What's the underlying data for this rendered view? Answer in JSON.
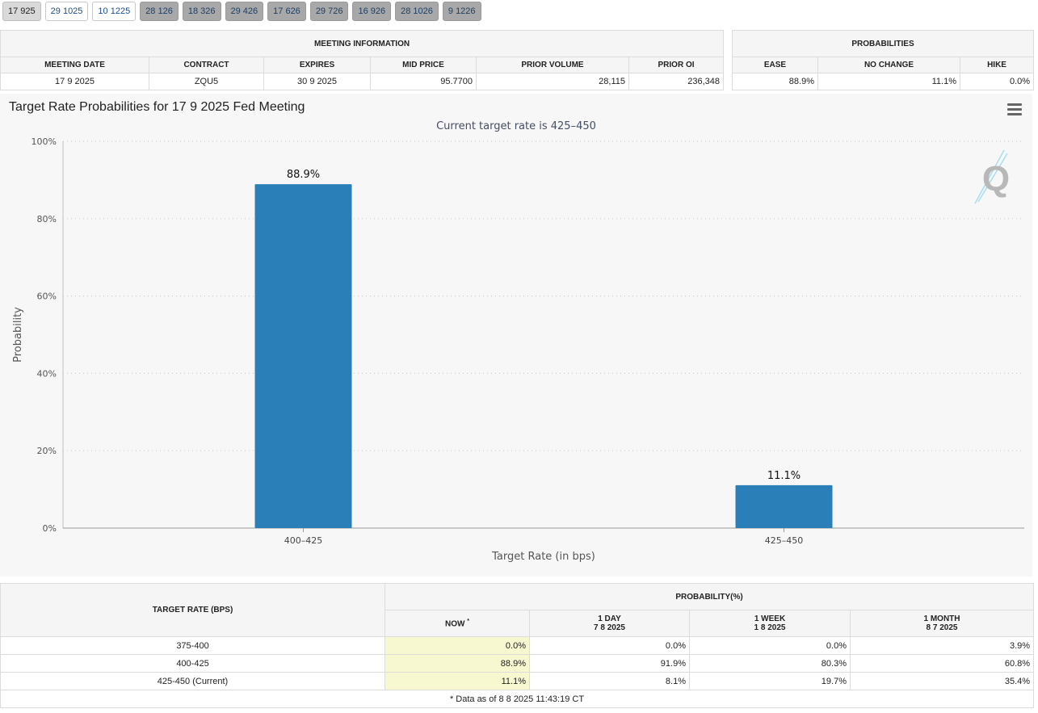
{
  "tabs": [
    {
      "label": "17 925",
      "style": "active"
    },
    {
      "label": "29 1025",
      "style": "white"
    },
    {
      "label": "10 1225",
      "style": "white"
    },
    {
      "label": "28 126",
      "style": "gray"
    },
    {
      "label": "18 326",
      "style": "gray"
    },
    {
      "label": "29 426",
      "style": "gray"
    },
    {
      "label": "17 626",
      "style": "gray"
    },
    {
      "label": "29 726",
      "style": "gray"
    },
    {
      "label": "16 926",
      "style": "gray"
    },
    {
      "label": "28 1026",
      "style": "gray"
    },
    {
      "label": "9 1226",
      "style": "gray"
    }
  ],
  "meeting_info": {
    "title": "MEETING INFORMATION",
    "headers": [
      "MEETING DATE",
      "CONTRACT",
      "EXPIRES",
      "MID PRICE",
      "PRIOR VOLUME",
      "PRIOR OI"
    ],
    "values": [
      "17 9 2025",
      "ZQU5",
      "30 9 2025",
      "95.7700",
      "28,115",
      "236,348"
    ]
  },
  "probabilities": {
    "title": "PROBABILITIES",
    "headers": [
      "EASE",
      "NO CHANGE",
      "HIKE"
    ],
    "values": [
      "88.9%",
      "11.1%",
      "0.0%"
    ]
  },
  "chart": {
    "title": "Target Rate Probabilities for 17 9 2025 Fed Meeting",
    "subtitle": "Current target rate is 425–450",
    "bar_color": "#2b7fb8"
  },
  "chart_data": {
    "type": "bar",
    "categories": [
      "400–425",
      "425–450"
    ],
    "values": [
      88.9,
      11.1
    ],
    "data_labels": [
      "88.9%",
      "11.1%"
    ],
    "xlabel": "Target Rate (in bps)",
    "ylabel": "Probability",
    "ylim": [
      0,
      100
    ],
    "yticks": [
      "0%",
      "20%",
      "40%",
      "60%",
      "80%",
      "100%"
    ],
    "grid": true
  },
  "rates_table": {
    "target_header": "TARGET RATE (BPS)",
    "prob_header": "PROBABILITY(%)",
    "cols": [
      {
        "label": "NOW",
        "sub": ""
      },
      {
        "label": "1 DAY",
        "sub": "7 8 2025"
      },
      {
        "label": "1 WEEK",
        "sub": "1 8 2025"
      },
      {
        "label": "1 MONTH",
        "sub": "8 7 2025"
      }
    ],
    "now_marker": "*",
    "rows": [
      {
        "rate": "375-400",
        "vals": [
          "0.0%",
          "0.0%",
          "0.0%",
          "3.9%"
        ]
      },
      {
        "rate": "400-425",
        "vals": [
          "88.9%",
          "91.9%",
          "80.3%",
          "60.8%"
        ]
      },
      {
        "rate": "425-450 (Current)",
        "vals": [
          "11.1%",
          "8.1%",
          "19.7%",
          "35.4%"
        ]
      }
    ],
    "footnote": "* Data as of 8 8 2025 11:43:19 CT"
  },
  "icons": {
    "menu": "hamburger-menu-icon",
    "logo": "quikstrike-logo-icon"
  }
}
